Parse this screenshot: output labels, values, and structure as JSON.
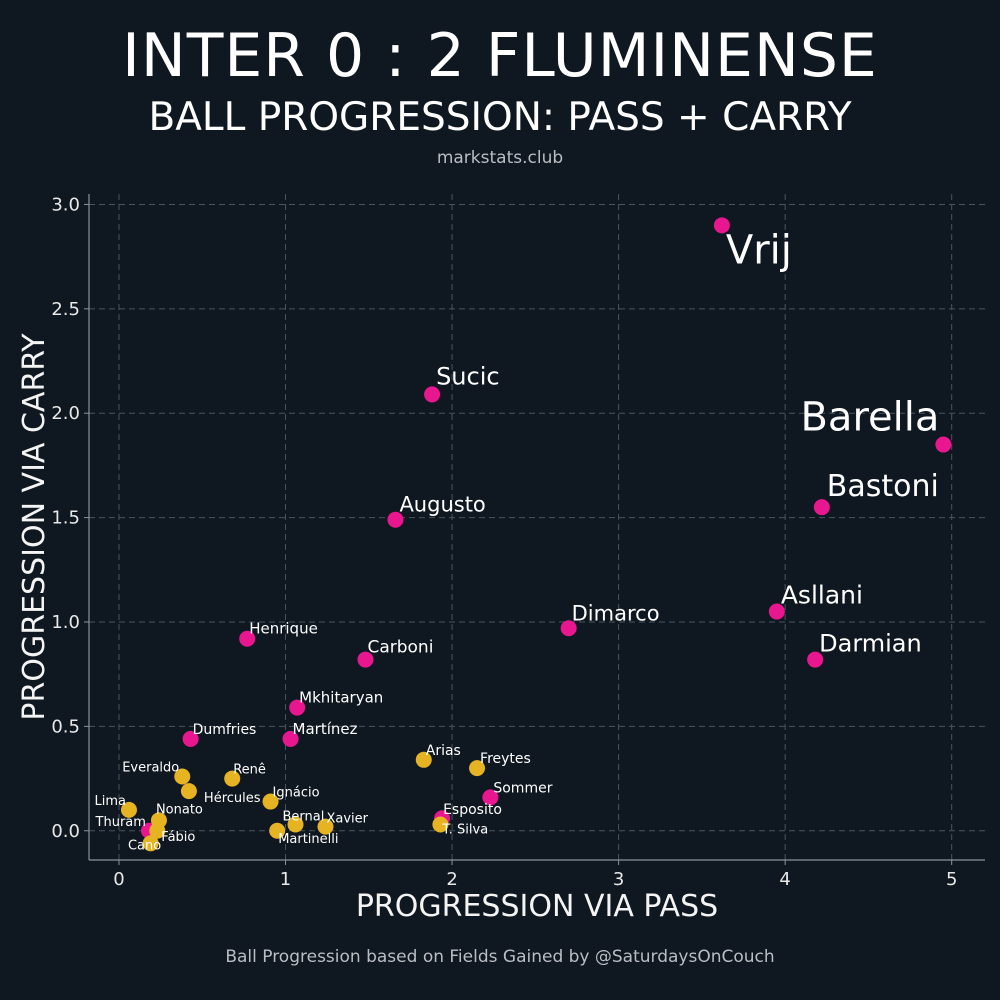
{
  "header": {
    "title": "INTER 0 : 2 FLUMINENSE",
    "subtitle": "BALL PROGRESSION: PASS + CARRY",
    "site": "markstats.club"
  },
  "footer": {
    "caption": "Ball Progression based on Fields Gained by @SaturdaysOnCouch"
  },
  "colors": {
    "background": "#0f1720",
    "inter": "#e8168f",
    "fluminense": "#e6b422",
    "grid": "#4a5560"
  },
  "chart_data": {
    "type": "scatter",
    "xlabel": "PROGRESSION VIA PASS",
    "ylabel": "PROGRESSION VIA CARRY",
    "xlim": [
      -0.18,
      5.2
    ],
    "ylim": [
      -0.14,
      3.05
    ],
    "xticks": [
      0,
      1,
      2,
      3,
      4,
      5
    ],
    "yticks": [
      0.0,
      0.5,
      1.0,
      1.5,
      2.0,
      2.5,
      3.0
    ],
    "xtick_labels": [
      "0",
      "1",
      "2",
      "3",
      "4",
      "5"
    ],
    "ytick_labels": [
      "0.0",
      "0.5",
      "1.0",
      "1.5",
      "2.0",
      "2.5",
      "3.0"
    ],
    "grid": true,
    "series": [
      {
        "team": "inter",
        "points": [
          {
            "label": "Vrij",
            "x": 3.62,
            "y": 2.9
          },
          {
            "label": "Barella",
            "x": 4.95,
            "y": 1.85
          },
          {
            "label": "Sucic",
            "x": 1.88,
            "y": 2.09
          },
          {
            "label": "Bastoni",
            "x": 4.22,
            "y": 1.55
          },
          {
            "label": "Augusto",
            "x": 1.66,
            "y": 1.49
          },
          {
            "label": "Asllani",
            "x": 3.95,
            "y": 1.05
          },
          {
            "label": "Dimarco",
            "x": 2.7,
            "y": 0.97
          },
          {
            "label": "Darmian",
            "x": 4.18,
            "y": 0.82
          },
          {
            "label": "Henrique",
            "x": 0.77,
            "y": 0.92
          },
          {
            "label": "Carboni",
            "x": 1.48,
            "y": 0.82
          },
          {
            "label": "Mkhitaryan",
            "x": 1.07,
            "y": 0.59
          },
          {
            "label": "Martínez",
            "x": 1.03,
            "y": 0.44
          },
          {
            "label": "Dumfries",
            "x": 0.43,
            "y": 0.44
          },
          {
            "label": "Sommer",
            "x": 2.23,
            "y": 0.16
          },
          {
            "label": "Esposito",
            "x": 1.94,
            "y": 0.06
          },
          {
            "label": "Thuram",
            "x": 0.18,
            "y": 0.0
          }
        ]
      },
      {
        "team": "fluminense",
        "points": [
          {
            "label": "Arias",
            "x": 1.83,
            "y": 0.34
          },
          {
            "label": "Freytes",
            "x": 2.15,
            "y": 0.3
          },
          {
            "label": "Everaldo",
            "x": 0.38,
            "y": 0.26
          },
          {
            "label": "Renê",
            "x": 0.68,
            "y": 0.25
          },
          {
            "label": "Hércules",
            "x": 0.42,
            "y": 0.19
          },
          {
            "label": "Ignácio",
            "x": 0.91,
            "y": 0.14
          },
          {
            "label": "Lima",
            "x": 0.06,
            "y": 0.1
          },
          {
            "label": "Nonato",
            "x": 0.24,
            "y": 0.05
          },
          {
            "label": "Bernal",
            "x": 1.06,
            "y": 0.03
          },
          {
            "label": "Xavier",
            "x": 1.24,
            "y": 0.02
          },
          {
            "label": "Martinelli",
            "x": 0.95,
            "y": 0.0
          },
          {
            "label": "Fábio",
            "x": 0.23,
            "y": 0.0
          },
          {
            "label": "T. Silva",
            "x": 1.93,
            "y": 0.03
          },
          {
            "label": "Cano",
            "x": 0.19,
            "y": -0.06
          }
        ]
      }
    ]
  }
}
